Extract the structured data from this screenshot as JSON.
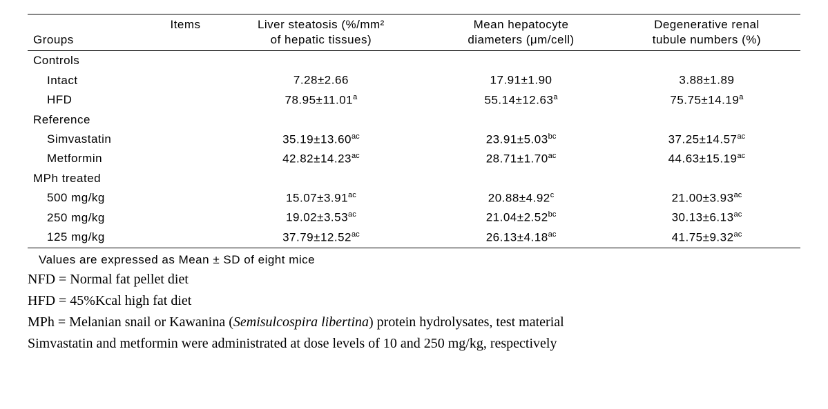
{
  "table": {
    "header": {
      "items_label": "Items",
      "groups_label": "Groups",
      "col1_line1": "Liver steatosis (%/mm²",
      "col1_line2": "of hepatic tissues)",
      "col2_line1": "Mean hepatocyte",
      "col2_line2": "diameters (μm/cell)",
      "col3_line1": "Degenerative renal",
      "col3_line2": "tubule numbers (%)"
    },
    "sections": {
      "controls": "Controls",
      "reference": "Reference",
      "mph": "MPh treated"
    },
    "rows": {
      "intact": {
        "label": "Intact",
        "c1": "7.28±2.66",
        "s1": "",
        "c2": "17.91±1.90",
        "s2": "",
        "c3": "3.88±1.89",
        "s3": ""
      },
      "hfd": {
        "label": "HFD",
        "c1": "78.95±11.01",
        "s1": "a",
        "c2": "55.14±12.63",
        "s2": "a",
        "c3": "75.75±14.19",
        "s3": "a"
      },
      "simvastatin": {
        "label": "Simvastatin",
        "c1": "35.19±13.60",
        "s1": "ac",
        "c2": "23.91±5.03",
        "s2": "bc",
        "c3": "37.25±14.57",
        "s3": "ac"
      },
      "metformin": {
        "label": "Metformin",
        "c1": "42.82±14.23",
        "s1": "ac",
        "c2": "28.71±1.70",
        "s2": "ac",
        "c3": "44.63±15.19",
        "s3": "ac"
      },
      "mph500": {
        "label": "500 mg/kg",
        "c1": "15.07±3.91",
        "s1": "ac",
        "c2": "20.88±4.92",
        "s2": "c",
        "c3": "21.00±3.93",
        "s3": "ac"
      },
      "mph250": {
        "label": "250 mg/kg",
        "c1": "19.02±3.53",
        "s1": "ac",
        "c2": "21.04±2.52",
        "s2": "bc",
        "c3": "30.13±6.13",
        "s3": "ac"
      },
      "mph125": {
        "label": "125 mg/kg",
        "c1": "37.79±12.52",
        "s1": "ac",
        "c2": "26.13±4.18",
        "s2": "ac",
        "c3": "41.75±9.32",
        "s3": "ac"
      }
    }
  },
  "notes": {
    "n1": "Values are expressed as Mean ± SD of eight mice",
    "n2": "NFD = Normal fat pellet diet",
    "n3": "HFD = 45%Kcal high fat diet",
    "n4a": "MPh = Melanian snail or Kawanina (",
    "n4b": "Semisulcospira libertina",
    "n4c": ") protein hydrolysates, test material",
    "n5": "Simvastatin and metformin were administrated at dose levels of 10 and 250 mg/kg, respectively"
  }
}
